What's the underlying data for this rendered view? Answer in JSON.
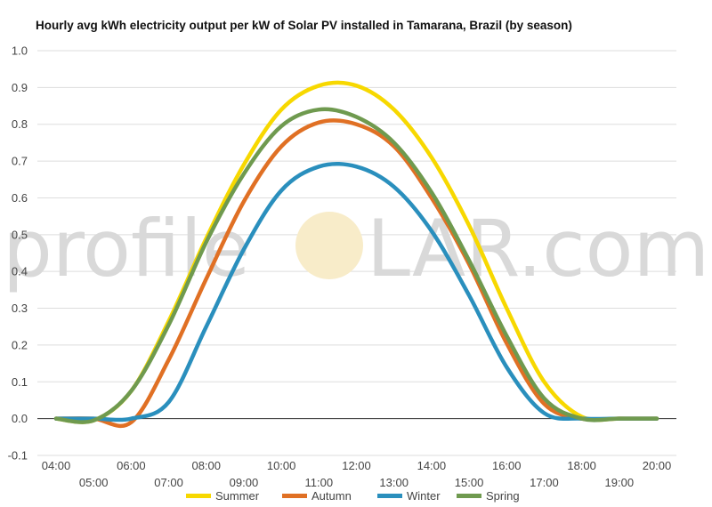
{
  "chart_data": {
    "type": "line",
    "title": "Hourly avg kWh electricity output per kW of Solar PV installed in Tamarana, Brazil (by season)",
    "xlabel": "",
    "ylabel": "",
    "ylim": [
      -0.1,
      1.0
    ],
    "yticks": [
      "-0.1",
      "0.0",
      "0.1",
      "0.2",
      "0.3",
      "0.4",
      "0.5",
      "0.6",
      "0.7",
      "0.8",
      "0.9",
      "1.0"
    ],
    "x": [
      "04:00",
      "05:00",
      "06:00",
      "07:00",
      "08:00",
      "09:00",
      "10:00",
      "11:00",
      "12:00",
      "13:00",
      "14:00",
      "15:00",
      "16:00",
      "17:00",
      "18:00",
      "19:00",
      "20:00"
    ],
    "grid": true,
    "legend_position": "bottom",
    "watermark": {
      "left": "profile",
      "right": "LAR.com"
    },
    "series": [
      {
        "name": "Summer",
        "color": "#f7d800",
        "values": [
          0.0,
          -0.005,
          0.075,
          0.265,
          0.49,
          0.69,
          0.84,
          0.905,
          0.905,
          0.84,
          0.71,
          0.525,
          0.3,
          0.1,
          0.005,
          0.0,
          0.0
        ]
      },
      {
        "name": "Autumn",
        "color": "#e07024",
        "values": [
          0.0,
          0.0,
          -0.01,
          0.16,
          0.38,
          0.59,
          0.74,
          0.805,
          0.8,
          0.74,
          0.6,
          0.42,
          0.205,
          0.04,
          0.0,
          0.0,
          0.0
        ]
      },
      {
        "name": "Winter",
        "color": "#2a8fbd",
        "values": [
          0.0,
          0.0,
          0.0,
          0.045,
          0.25,
          0.46,
          0.62,
          0.685,
          0.685,
          0.63,
          0.51,
          0.335,
          0.14,
          0.015,
          0.0,
          0.0,
          0.0
        ]
      },
      {
        "name": "Spring",
        "color": "#6f9a4f",
        "values": [
          0.0,
          -0.005,
          0.075,
          0.255,
          0.48,
          0.665,
          0.795,
          0.84,
          0.82,
          0.75,
          0.615,
          0.43,
          0.225,
          0.055,
          0.0,
          0.0,
          0.0
        ]
      }
    ]
  }
}
